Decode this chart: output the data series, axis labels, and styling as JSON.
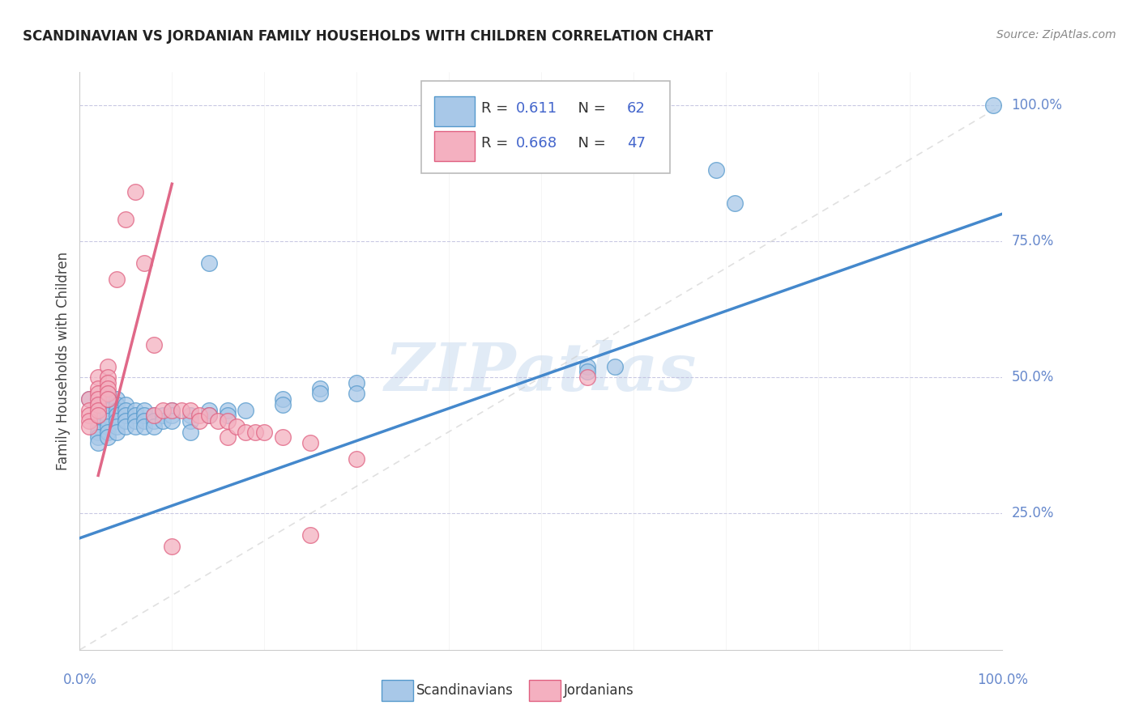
{
  "title": "SCANDINAVIAN VS JORDANIAN FAMILY HOUSEHOLDS WITH CHILDREN CORRELATION CHART",
  "source": "Source: ZipAtlas.com",
  "ylabel": "Family Households with Children",
  "watermark_text": "ZIPatlas",
  "scand_color": "#a8c8e8",
  "scand_edge": "#5599cc",
  "jordan_color": "#f4b0c0",
  "jordan_edge": "#e06080",
  "scand_line_color": "#4488cc",
  "jordan_line_color": "#e06888",
  "diagonal_color": "#cccccc",
  "ytick_color": "#6688cc",
  "xtick_color": "#6688cc",
  "scandinavians": [
    [
      0.01,
      0.46
    ],
    [
      0.02,
      0.45
    ],
    [
      0.02,
      0.44
    ],
    [
      0.02,
      0.43
    ],
    [
      0.02,
      0.42
    ],
    [
      0.02,
      0.41
    ],
    [
      0.02,
      0.4
    ],
    [
      0.02,
      0.39
    ],
    [
      0.02,
      0.38
    ],
    [
      0.03,
      0.47
    ],
    [
      0.03,
      0.46
    ],
    [
      0.03,
      0.45
    ],
    [
      0.03,
      0.44
    ],
    [
      0.03,
      0.43
    ],
    [
      0.03,
      0.42
    ],
    [
      0.03,
      0.41
    ],
    [
      0.03,
      0.4
    ],
    [
      0.03,
      0.39
    ],
    [
      0.04,
      0.46
    ],
    [
      0.04,
      0.45
    ],
    [
      0.04,
      0.44
    ],
    [
      0.04,
      0.43
    ],
    [
      0.04,
      0.42
    ],
    [
      0.04,
      0.41
    ],
    [
      0.04,
      0.4
    ],
    [
      0.05,
      0.45
    ],
    [
      0.05,
      0.44
    ],
    [
      0.05,
      0.43
    ],
    [
      0.05,
      0.42
    ],
    [
      0.05,
      0.41
    ],
    [
      0.06,
      0.44
    ],
    [
      0.06,
      0.43
    ],
    [
      0.06,
      0.42
    ],
    [
      0.06,
      0.41
    ],
    [
      0.07,
      0.44
    ],
    [
      0.07,
      0.43
    ],
    [
      0.07,
      0.42
    ],
    [
      0.07,
      0.41
    ],
    [
      0.08,
      0.43
    ],
    [
      0.08,
      0.42
    ],
    [
      0.08,
      0.41
    ],
    [
      0.09,
      0.43
    ],
    [
      0.09,
      0.42
    ],
    [
      0.1,
      0.44
    ],
    [
      0.1,
      0.43
    ],
    [
      0.1,
      0.42
    ],
    [
      0.12,
      0.43
    ],
    [
      0.12,
      0.42
    ],
    [
      0.12,
      0.4
    ],
    [
      0.14,
      0.44
    ],
    [
      0.14,
      0.43
    ],
    [
      0.16,
      0.44
    ],
    [
      0.16,
      0.43
    ],
    [
      0.18,
      0.44
    ],
    [
      0.22,
      0.46
    ],
    [
      0.22,
      0.45
    ],
    [
      0.26,
      0.48
    ],
    [
      0.26,
      0.47
    ],
    [
      0.3,
      0.49
    ],
    [
      0.3,
      0.47
    ],
    [
      0.55,
      0.52
    ],
    [
      0.55,
      0.51
    ],
    [
      0.58,
      0.52
    ],
    [
      0.99,
      1.0
    ],
    [
      0.14,
      0.71
    ],
    [
      0.69,
      0.88
    ],
    [
      0.71,
      0.82
    ]
  ],
  "jordanians": [
    [
      0.01,
      0.46
    ],
    [
      0.01,
      0.44
    ],
    [
      0.01,
      0.43
    ],
    [
      0.01,
      0.42
    ],
    [
      0.01,
      0.41
    ],
    [
      0.02,
      0.5
    ],
    [
      0.02,
      0.48
    ],
    [
      0.02,
      0.47
    ],
    [
      0.02,
      0.46
    ],
    [
      0.02,
      0.45
    ],
    [
      0.02,
      0.44
    ],
    [
      0.02,
      0.43
    ],
    [
      0.03,
      0.52
    ],
    [
      0.03,
      0.5
    ],
    [
      0.03,
      0.49
    ],
    [
      0.03,
      0.48
    ],
    [
      0.03,
      0.47
    ],
    [
      0.03,
      0.46
    ],
    [
      0.04,
      0.68
    ],
    [
      0.05,
      0.79
    ],
    [
      0.06,
      0.84
    ],
    [
      0.07,
      0.71
    ],
    [
      0.08,
      0.56
    ],
    [
      0.08,
      0.43
    ],
    [
      0.09,
      0.44
    ],
    [
      0.1,
      0.44
    ],
    [
      0.11,
      0.44
    ],
    [
      0.12,
      0.44
    ],
    [
      0.13,
      0.43
    ],
    [
      0.13,
      0.42
    ],
    [
      0.14,
      0.43
    ],
    [
      0.15,
      0.42
    ],
    [
      0.16,
      0.42
    ],
    [
      0.16,
      0.39
    ],
    [
      0.17,
      0.41
    ],
    [
      0.18,
      0.4
    ],
    [
      0.19,
      0.4
    ],
    [
      0.2,
      0.4
    ],
    [
      0.22,
      0.39
    ],
    [
      0.25,
      0.38
    ],
    [
      0.1,
      0.19
    ],
    [
      0.25,
      0.21
    ],
    [
      0.3,
      0.35
    ],
    [
      0.55,
      0.5
    ]
  ],
  "scand_line_x0": 0.0,
  "scand_line_y0": 0.205,
  "scand_line_x1": 1.0,
  "scand_line_y1": 0.8,
  "jordan_line_x0": 0.02,
  "jordan_line_y0": 0.32,
  "jordan_line_x1": 0.1,
  "jordan_line_y1": 0.855,
  "xmin": 0.0,
  "xmax": 1.0,
  "ymin": 0.0,
  "ymax": 1.06,
  "ytick_positions": [
    0.25,
    0.5,
    0.75,
    1.0
  ],
  "ytick_labels": [
    "25.0%",
    "50.0%",
    "75.0%",
    "100.0%"
  ]
}
